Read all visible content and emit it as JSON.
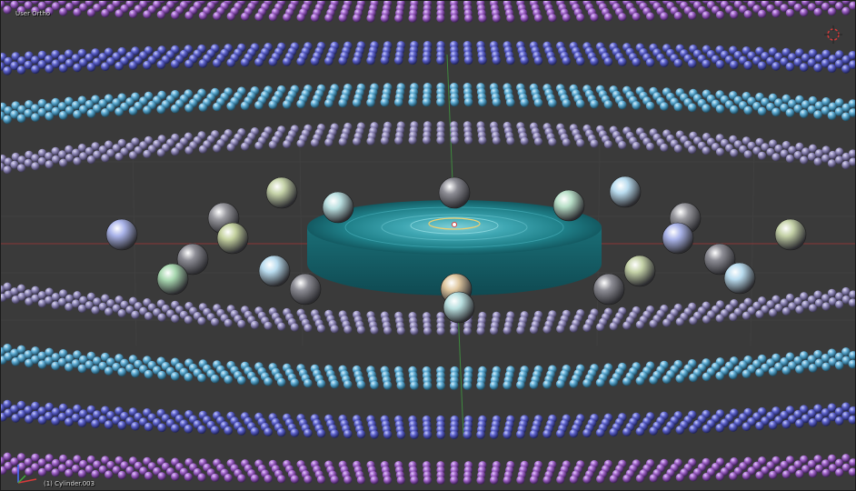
{
  "viewport": {
    "view_label": "User Ortho",
    "object_label": "(1) Cylinder.003",
    "background": "#3a3a3a"
  },
  "colors": {
    "ring_violet": "#9b5fc4",
    "ring_blue": "#5a5fc8",
    "ring_cyan": "#5aa8d0",
    "ring_lavender": "#8f88b8",
    "disk_teal": "#1f7f88",
    "axis_red": "#8a3636",
    "axis_green": "#3f8a3f",
    "cursor_red": "#d83a3a"
  },
  "icons": {
    "nav_gizmo": "3d-cursor-icon",
    "axis_gizmo": "xyz-axis-icon"
  }
}
